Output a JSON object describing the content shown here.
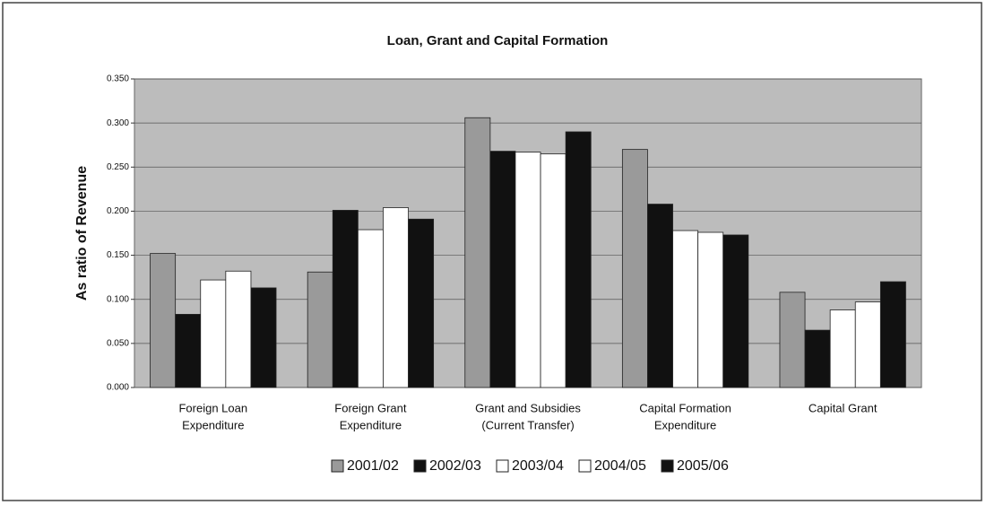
{
  "chart_data": {
    "type": "bar",
    "title": "Loan, Grant and Capital Formation",
    "y_label": "As ratio of Revenue",
    "categories": [
      [
        "Foreign Loan",
        "Expenditure"
      ],
      [
        "Foreign Grant",
        "Expenditure"
      ],
      [
        "Grant and Subsidies",
        "(Current Transfer)"
      ],
      [
        "Capital Formation",
        "Expenditure"
      ],
      [
        "Capital Grant"
      ]
    ],
    "series": [
      {
        "name": "2001/02",
        "color": "#9a9a9a",
        "values": [
          0.152,
          0.131,
          0.306,
          0.27,
          0.108
        ]
      },
      {
        "name": "2002/03",
        "color": "#111111",
        "values": [
          0.083,
          0.201,
          0.268,
          0.208,
          0.065
        ]
      },
      {
        "name": "2003/04",
        "color": "#ffffff",
        "values": [
          0.122,
          0.179,
          0.267,
          0.178,
          0.088
        ]
      },
      {
        "name": "2004/05",
        "color": "#ffffff",
        "values": [
          0.132,
          0.204,
          0.265,
          0.176,
          0.097
        ]
      },
      {
        "name": "2005/06",
        "color": "#111111",
        "values": [
          0.113,
          0.191,
          0.29,
          0.173,
          0.12
        ]
      }
    ],
    "ylim": [
      0,
      0.35
    ],
    "yticks": [
      {
        "value": 0,
        "label": "0.000"
      },
      {
        "value": 0.05,
        "label": "0.050"
      },
      {
        "value": 0.1,
        "label": "0.100"
      },
      {
        "value": 0.15,
        "label": "0.150"
      },
      {
        "value": 0.2,
        "label": "0.200"
      },
      {
        "value": 0.25,
        "label": "0.250"
      },
      {
        "value": 0.3,
        "label": "0.300"
      },
      {
        "value": 0.35,
        "label": "0.350"
      }
    ],
    "grid": true,
    "legend": "bottom"
  }
}
